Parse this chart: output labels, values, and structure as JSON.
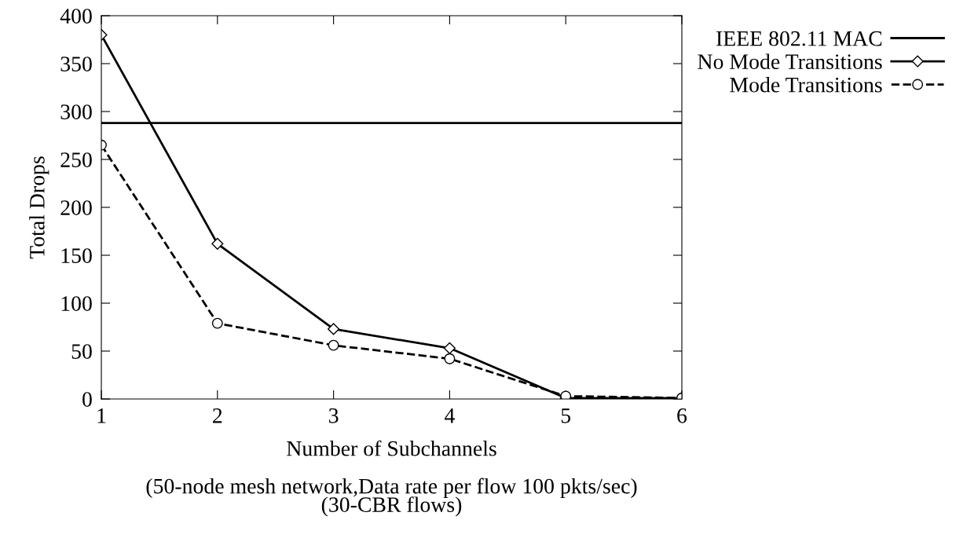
{
  "chart_data": {
    "type": "line",
    "xlabel": "Number of Subchannels",
    "ylabel": "Total Drops",
    "x": [
      1,
      2,
      3,
      4,
      5,
      6
    ],
    "series": [
      {
        "name": "IEEE 802.11 MAC",
        "color": "#000000",
        "values": [
          288,
          288,
          288,
          288,
          288,
          288
        ],
        "marker": "none",
        "line_style": "solid"
      },
      {
        "name": "No Mode Transitions",
        "color": "#000000",
        "values": [
          380,
          162,
          73,
          53,
          1,
          1
        ],
        "marker": "diamond",
        "line_style": "solid"
      },
      {
        "name": "Mode Transitions",
        "color": "#000000",
        "values": [
          265,
          79,
          56,
          42,
          3,
          1
        ],
        "marker": "circle",
        "line_style": "dashed"
      }
    ],
    "xlim": [
      1,
      6
    ],
    "xticks": [
      1,
      2,
      3,
      4,
      5,
      6
    ],
    "ylim": [
      0,
      400
    ],
    "yticks": [
      0,
      50,
      100,
      150,
      200,
      250,
      300,
      350,
      400
    ],
    "grid": false,
    "legend": "top right",
    "annotations": [
      "(50-node mesh network,Data rate per flow 100 pkts/sec)\n(30-CBR flows)"
    ]
  }
}
